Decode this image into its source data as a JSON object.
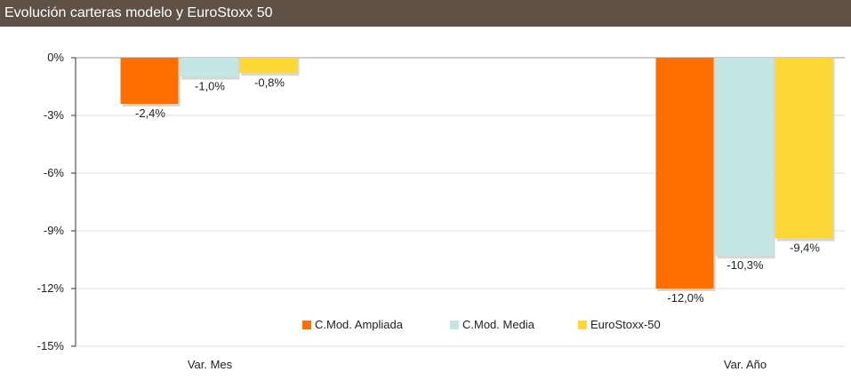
{
  "title": "Evolución carteras modelo y EuroStoxx 50",
  "chart_data": {
    "type": "bar",
    "categories": [
      "Var. Mes",
      "Var. Año"
    ],
    "series": [
      {
        "name": "C.Mod. Ampliada",
        "color": "#ff6f00",
        "values": [
          -2.4,
          -12.0
        ],
        "labels": [
          "-2,4%",
          "-12,0%"
        ]
      },
      {
        "name": "C.Mod. Media",
        "color": "#c2e6e4",
        "values": [
          -1.0,
          -10.3
        ],
        "labels": [
          "-1,0%",
          "-10,3%"
        ]
      },
      {
        "name": "EuroStoxx-50",
        "color": "#fdd835",
        "values": [
          -0.8,
          -9.4
        ],
        "labels": [
          "-0,8%",
          "-9,4%"
        ]
      }
    ],
    "ylim": [
      -15,
      0
    ],
    "yticks": [
      0,
      -3,
      -6,
      -9,
      -12,
      -15
    ],
    "ytick_labels": [
      "0%",
      "-3%",
      "-6%",
      "-9%",
      "-12%",
      "-15%"
    ],
    "grid": true,
    "legend_position": "bottom-center"
  }
}
